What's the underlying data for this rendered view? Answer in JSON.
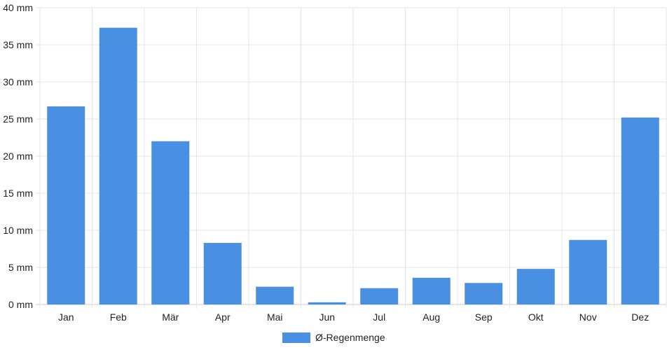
{
  "chart_data": {
    "type": "bar",
    "categories": [
      "Jan",
      "Feb",
      "Mär",
      "Apr",
      "Mai",
      "Jun",
      "Jul",
      "Aug",
      "Sep",
      "Okt",
      "Nov",
      "Dez"
    ],
    "series": [
      {
        "name": "Ø-Regenmenge",
        "values": [
          26.7,
          37.3,
          22.0,
          8.3,
          2.4,
          0.3,
          2.2,
          3.6,
          2.9,
          4.8,
          8.7,
          25.2
        ],
        "color": "#4a90e2"
      }
    ],
    "ylim": [
      0,
      40
    ],
    "yticks": [
      "0 mm",
      "5 mm",
      "10 mm",
      "15 mm",
      "20 mm",
      "25 mm",
      "30 mm",
      "35 mm",
      "40 mm"
    ],
    "grid": true,
    "legend_position": "bottom"
  }
}
